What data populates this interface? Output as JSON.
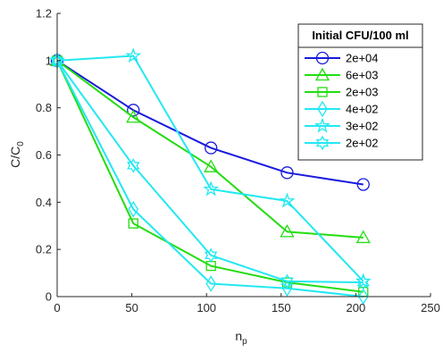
{
  "chart_data": {
    "type": "line",
    "xlabel": {
      "main": "n",
      "sub": "p"
    },
    "ylabel": {
      "main": "C/C",
      "sub": "0"
    },
    "xlim": [
      0,
      250
    ],
    "ylim": [
      0,
      1.2
    ],
    "xticks": [
      0,
      50,
      100,
      150,
      200,
      250
    ],
    "yticks": [
      0,
      0.2,
      0.4,
      0.6,
      0.8,
      1,
      1.2
    ],
    "xtick_labels": [
      "0",
      "50",
      "100",
      "150",
      "200",
      "250"
    ],
    "ytick_labels": [
      "0",
      "0.2",
      "0.4",
      "0.6",
      "0.8",
      "1",
      "1.2"
    ],
    "grid": false,
    "legend": {
      "title": "Initial CFU/100 ml",
      "position": "top-right"
    },
    "series": [
      {
        "name": "2e+04",
        "color": "#1a1adc",
        "marker": "circle",
        "x": [
          0,
          51,
          103,
          154,
          205
        ],
        "y": [
          1.0,
          0.79,
          0.63,
          0.525,
          0.475
        ]
      },
      {
        "name": "6e+03",
        "color": "#22dd11",
        "marker": "triangle",
        "x": [
          0,
          51,
          103,
          154,
          205
        ],
        "y": [
          1.0,
          0.76,
          0.55,
          0.275,
          0.25
        ]
      },
      {
        "name": "2e+03",
        "color": "#22dd11",
        "marker": "square",
        "x": [
          0,
          51,
          103,
          154,
          205
        ],
        "y": [
          1.0,
          0.31,
          0.13,
          0.06,
          0.02
        ]
      },
      {
        "name": "4e+02",
        "color": "#22e8f2",
        "marker": "diamond",
        "x": [
          0,
          51,
          103,
          154,
          205
        ],
        "y": [
          1.0,
          0.37,
          0.055,
          0.035,
          0.0
        ]
      },
      {
        "name": "3e+02",
        "color": "#22e8f2",
        "marker": "pentagram",
        "x": [
          0,
          51,
          103,
          154,
          205
        ],
        "y": [
          1.0,
          1.02,
          0.455,
          0.405,
          0.065
        ]
      },
      {
        "name": "2e+02",
        "color": "#22e8f2",
        "marker": "hexagram",
        "x": [
          0,
          51,
          103,
          154,
          205
        ],
        "y": [
          1.0,
          0.555,
          0.175,
          0.065,
          0.06
        ]
      }
    ]
  }
}
